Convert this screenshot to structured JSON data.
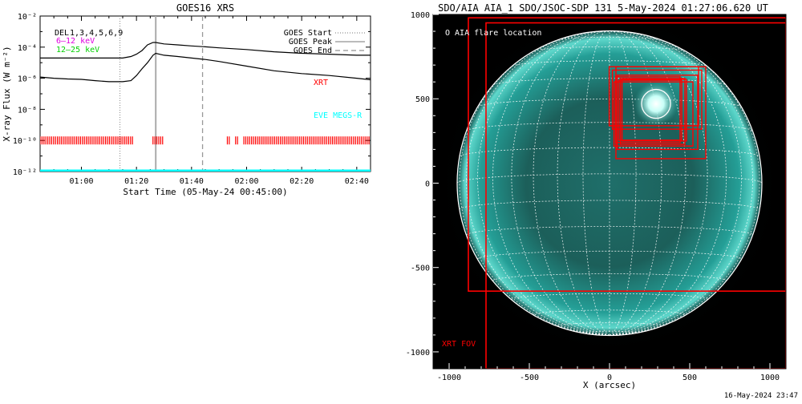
{
  "left_chart": {
    "title": "GOES16 XRS",
    "ylabel": "X-ray Flux (W m⁻²)",
    "xlabel": "Start Time (05-May-24 00:45:00)",
    "y_tick_labels": [
      "10⁻²",
      "10⁻⁴",
      "10⁻⁶",
      "10⁻⁸",
      "10⁻¹⁰",
      "10⁻¹²"
    ],
    "x_tick_labels": [
      "01:00",
      "01:20",
      "01:40",
      "02:00",
      "02:20",
      "02:40"
    ],
    "instrument_labels": [
      "DEL",
      "XRT",
      "EVE MEGS-R"
    ],
    "legend": {
      "start": "GOES Start",
      "peak": "GOES Peak",
      "end": "GOES End",
      "row1": "1,3,4,5,6,9",
      "row2": "6–12 keV",
      "row3": "12–25 keV"
    },
    "colors": {
      "xrt": "#ff0000",
      "eve": "#00ffff",
      "row2": "#e000e0",
      "row3": "#00d000",
      "peak_line": "#aaaaaa",
      "end_line": "#999999"
    }
  },
  "right_chart": {
    "title": "SDO/AIA AIA_1 SDO/JSOC-SDP 131  5-May-2024 01:27:06.620 UT",
    "xlabel": "X (arcsec)",
    "x_tick_labels": [
      "-1000",
      "-500",
      "0",
      "500",
      "1000"
    ],
    "y_tick_labels": [
      "1000",
      "500",
      "0",
      "-500",
      "-1000"
    ],
    "flare_legend": "O AIA flare location",
    "fov_label": "XRT FOV",
    "colors": {
      "fov": "#ff0000",
      "sun": "#1f9c94",
      "grid": "#ffffff"
    }
  },
  "footer": {
    "timestamp": "16-May-2024 23:47"
  },
  "chart_data": [
    {
      "type": "line",
      "title": "GOES16 XRS",
      "xlabel": "Start Time (05-May-24 00:45:00)",
      "ylabel": "X-ray Flux (W m⁻²)",
      "y_scale": "log",
      "ylim": [
        1e-12,
        0.01
      ],
      "xlim": [
        "00:45",
        "02:45"
      ],
      "series": [
        {
          "x": [
            "00:45",
            "00:50",
            "00:55",
            "01:00",
            "01:05",
            "01:10",
            "01:15",
            "01:18",
            "01:20",
            "01:22",
            "01:24",
            "01:26",
            "01:27",
            "01:30",
            "01:35",
            "01:40",
            "01:45",
            "01:50",
            "02:00",
            "02:10",
            "02:20",
            "02:30",
            "02:40",
            "02:45"
          ],
          "y": [
            2e-05,
            2e-05,
            2e-05,
            2e-05,
            2e-05,
            2e-05,
            2e-05,
            2.5e-05,
            3.5e-05,
            6e-05,
            0.00014,
            0.0002,
            0.0002,
            0.00016,
            0.00014,
            0.00012,
            0.000105,
            9e-05,
            7e-05,
            5e-05,
            4e-05,
            3.5e-05,
            3e-05,
            3e-05
          ]
        },
        {
          "x": [
            "00:45",
            "00:50",
            "00:55",
            "01:00",
            "01:05",
            "01:10",
            "01:15",
            "01:18",
            "01:20",
            "01:22",
            "01:24",
            "01:26",
            "01:27",
            "01:30",
            "01:35",
            "01:40",
            "01:45",
            "01:50",
            "02:00",
            "02:10",
            "02:20",
            "02:30",
            "02:40",
            "02:45"
          ],
          "y": [
            1.2e-06,
            1e-06,
            9e-07,
            8.5e-07,
            7e-07,
            6e-07,
            6e-07,
            7e-07,
            1.5e-06,
            4e-06,
            1e-05,
            3e-05,
            4e-05,
            3e-05,
            2.5e-05,
            2e-05,
            1.6e-05,
            1.2e-05,
            6e-06,
            3e-06,
            2e-06,
            1.5e-06,
            1e-06,
            8e-07
          ]
        },
        {
          "x": [
            "00:45",
            "02:45"
          ],
          "y": [
            1e-12,
            1e-12
          ]
        }
      ],
      "vlines": [
        {
          "x": "01:14",
          "legend": "GOES Start"
        },
        {
          "x": "01:27",
          "legend": "GOES Peak"
        },
        {
          "x": "01:44",
          "legend": "GOES End"
        }
      ],
      "xrt_observations": [
        {
          "start": "00:45",
          "end": "01:19"
        },
        {
          "start": "01:26",
          "end": "01:30"
        },
        {
          "start": "01:53",
          "end": "01:54"
        },
        {
          "start": "01:56",
          "end": "01:57"
        },
        {
          "start": "01:59",
          "end": "02:45"
        }
      ]
    },
    {
      "type": "scatter",
      "title": "SDO/AIA AIA_1 SDO/JSOC-SDP 131  5-May-2024 01:27:06.620 UT",
      "xlabel": "X (arcsec)",
      "xlim": [
        -1100,
        1100
      ],
      "ylim": [
        -1100,
        1000
      ],
      "solar_radius_arcsec": 950,
      "flare_location": {
        "x": 290,
        "y": 470
      },
      "xrt_fov_boxes": [
        {
          "x0": -880,
          "x1": 1100,
          "y0": -640,
          "y1": 980
        },
        {
          "x0": -770,
          "x1": 1100,
          "y0": -1100,
          "y1": 950
        },
        {
          "x0": -2,
          "x1": 555,
          "y0": 340,
          "y1": 690
        },
        {
          "x0": 18,
          "x1": 575,
          "y0": 320,
          "y1": 670
        },
        {
          "x0": 38,
          "x1": 440,
          "y0": 240,
          "y1": 630
        },
        {
          "x0": 48,
          "x1": 550,
          "y0": 200,
          "y1": 640
        },
        {
          "x0": 28,
          "x1": 520,
          "y0": 220,
          "y1": 600
        },
        {
          "x0": 68,
          "x1": 470,
          "y0": 230,
          "y1": 620
        },
        {
          "x0": 58,
          "x1": 450,
          "y0": 255,
          "y1": 610
        },
        {
          "x0": 78,
          "x1": 480,
          "y0": 250,
          "y1": 615
        },
        {
          "x0": 40,
          "x1": 600,
          "y0": 145,
          "y1": 690
        }
      ]
    }
  ]
}
